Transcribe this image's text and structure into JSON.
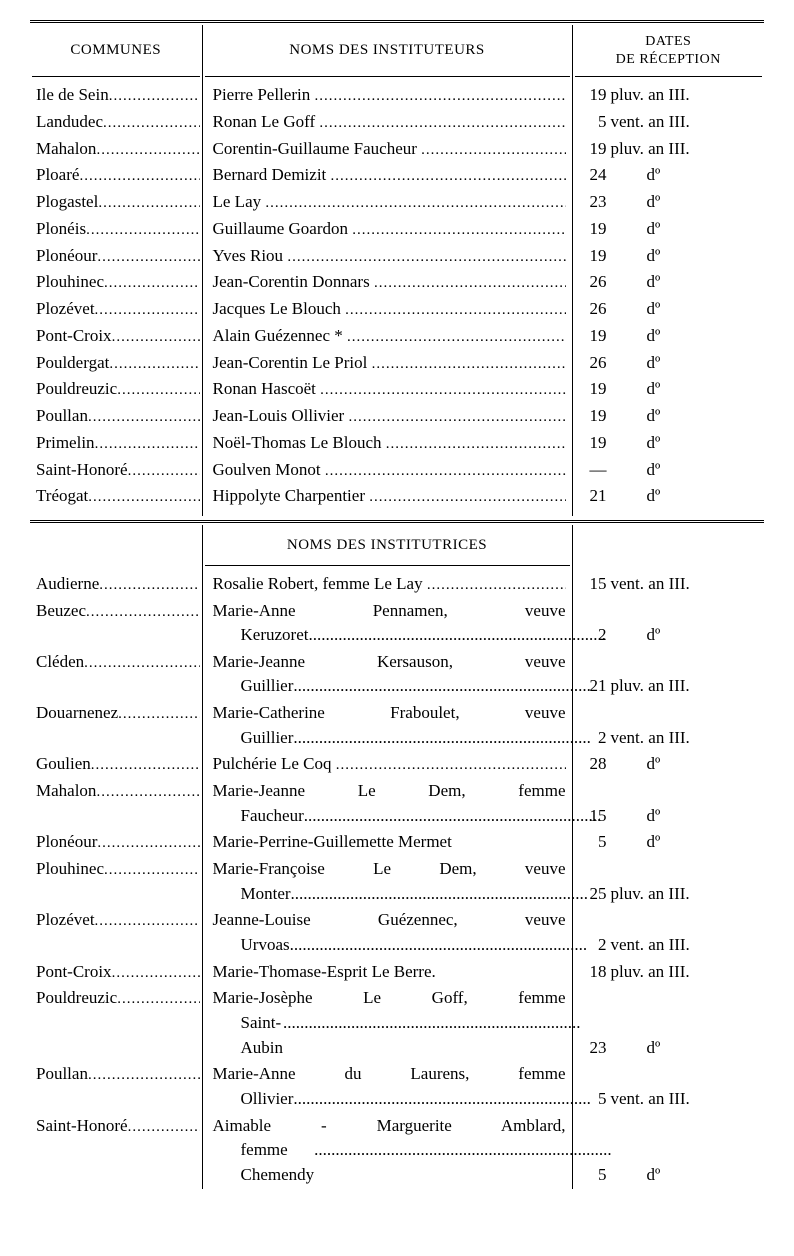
{
  "headers": {
    "communes": "COMMUNES",
    "noms_m": "NOMS DES INSTITUTEURS",
    "noms_f": "NOMS DES INSTITUTRICES",
    "dates_l1": "DATES",
    "dates_l2": "DE RÉCEPTION"
  },
  "instituteurs": [
    {
      "commune": "Ile de Sein",
      "nom": "Pierre Pellerin",
      "date_num": "19",
      "date_rest": "pluv. an III."
    },
    {
      "commune": "Landudec",
      "nom": "Ronan Le Goff",
      "date_num": "5",
      "date_rest": "vent. an III."
    },
    {
      "commune": "Mahalon",
      "nom": "Corentin-Guillaume Faucheur",
      "date_num": "19",
      "date_rest": "pluv. an III."
    },
    {
      "commune": "Ploaré",
      "nom": "Bernard Demizit",
      "date_num": "24",
      "date_do": "dº"
    },
    {
      "commune": "Plogastel",
      "nom": "Le Lay",
      "date_num": "23",
      "date_do": "dº"
    },
    {
      "commune": "Plonéis",
      "nom": "Guillaume Goardon",
      "date_num": "19",
      "date_do": "dº"
    },
    {
      "commune": "Plonéour",
      "nom": "Yves Riou",
      "date_num": "19",
      "date_do": "dº"
    },
    {
      "commune": "Plouhinec",
      "nom": "Jean-Corentin Donnars",
      "date_num": "26",
      "date_do": "dº"
    },
    {
      "commune": "Plozévet",
      "nom": "Jacques Le Blouch",
      "date_num": "26",
      "date_do": "dº"
    },
    {
      "commune": "Pont-Croix",
      "nom": "Alain Guézennec *",
      "date_num": "19",
      "date_do": "dº"
    },
    {
      "commune": "Pouldergat",
      "nom": "Jean-Corentin Le Priol",
      "date_num": "26",
      "date_do": "dº"
    },
    {
      "commune": "Pouldreuzic",
      "nom": "Ronan Hascoët",
      "date_num": "19",
      "date_do": "dº"
    },
    {
      "commune": "Poullan",
      "nom": "Jean-Louis Ollivier",
      "date_num": "19",
      "date_do": "dº"
    },
    {
      "commune": "Primelin",
      "nom": "Noël-Thomas Le Blouch",
      "date_num": "19",
      "date_do": "dº"
    },
    {
      "commune": "Saint-Honoré",
      "nom": "Goulven Monot",
      "date_num": "—",
      "date_do": "dº"
    },
    {
      "commune": "Tréogat",
      "nom": "Hippolyte Charpentier",
      "date_num": "21",
      "date_do": "dº"
    }
  ],
  "institutrices": [
    {
      "commune": "Audierne",
      "nom": "Rosalie Robert, femme Le Lay",
      "date_num": "15",
      "date_rest": "vent. an III."
    },
    {
      "commune": "Beuzec",
      "nom_l1": "Marie-Anne Pennamen, veuve",
      "nom_l2": "Keruzoret",
      "date_num": "2",
      "date_do": "dº"
    },
    {
      "commune": "Cléden",
      "nom_l1": "Marie-Jeanne Kersauson, veuve",
      "nom_l2": "Guillier",
      "date_num": "21",
      "date_rest": "pluv. an III."
    },
    {
      "commune": "Douarnenez",
      "nom_l1": "Marie-Catherine Fraboulet, veuve",
      "nom_l2": "Guillier",
      "date_num": "2",
      "date_rest": "vent. an III."
    },
    {
      "commune": "Goulien",
      "nom": "Pulchérie Le Coq",
      "date_num": "28",
      "date_do": "dº"
    },
    {
      "commune": "Mahalon",
      "nom_l1": "Marie-Jeanne Le Dem, femme",
      "nom_l2": "Faucheur",
      "date_num": "15",
      "date_do": "dº"
    },
    {
      "commune": "Plonéour",
      "nom": "Marie-Perrine-Guillemette Mermet",
      "date_num": "5",
      "date_do": "dº",
      "nodots": true
    },
    {
      "commune": "Plouhinec",
      "nom_l1": "Marie-Françoise Le Dem, veuve",
      "nom_l2": "Monter",
      "date_num": "25",
      "date_rest": "pluv. an III."
    },
    {
      "commune": "Plozévet",
      "nom_l1": "Jeanne-Louise Guézennec, veuve",
      "nom_l2": "Urvoas",
      "date_num": "2",
      "date_rest": "vent. an III."
    },
    {
      "commune": "Pont-Croix",
      "nom": "Marie-Thomase-Esprit Le Berre.",
      "date_num": "18",
      "date_rest": "pluv. an III.",
      "nodots": true
    },
    {
      "commune": "Pouldreuzic",
      "nom_l1": "Marie-Josèphe Le Goff, femme",
      "nom_l2": "Saint-Aubin",
      "date_num": "23",
      "date_do": "dº"
    },
    {
      "commune": "Poullan",
      "nom_l1": "Marie-Anne du Laurens, femme",
      "nom_l2": "Ollivier",
      "date_num": "5",
      "date_rest": "vent. an III."
    },
    {
      "commune": "Saint-Honoré",
      "nom_l1": "Aimable - Marguerite Amblard,",
      "nom_l2": "femme Chemendy",
      "date_num": "5",
      "date_do": "dº"
    }
  ],
  "dots": "......................................................................",
  "dots_short": "....................."
}
